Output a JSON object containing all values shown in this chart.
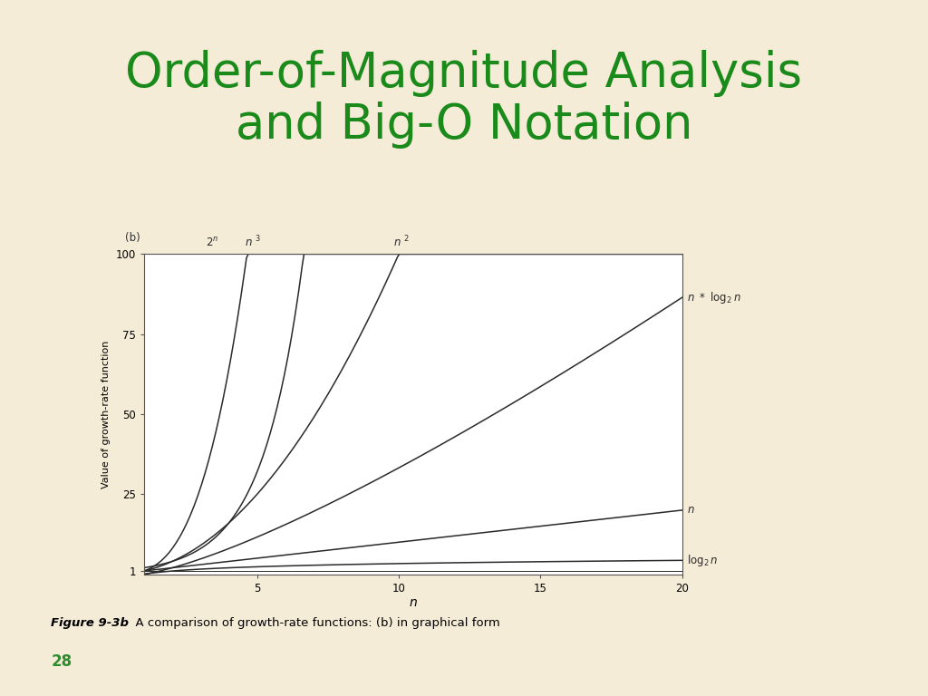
{
  "title_line1": "Order-of-Magnitude Analysis",
  "title_line2": "and Big-O Notation",
  "title_color": "#1a8a1a",
  "title_fontsize": 38,
  "bg_color": "#f5ecd7",
  "plot_bg": "#ffffff",
  "panel_label": "(b)",
  "xlabel": "n",
  "ylabel": "Value of growth-rate function",
  "xlim": [
    1,
    20
  ],
  "ylim": [
    0,
    100
  ],
  "yticks": [
    1,
    25,
    50,
    75,
    100
  ],
  "xticks": [
    5,
    10,
    15,
    20
  ],
  "caption_bold": "Figure 9-3b",
  "caption_normal": "  A comparison of growth-rate functions: (b) in graphical form",
  "page_num": "28",
  "page_color": "#2e8b2e",
  "line_color": "#2a2a2a",
  "n_points": 300
}
